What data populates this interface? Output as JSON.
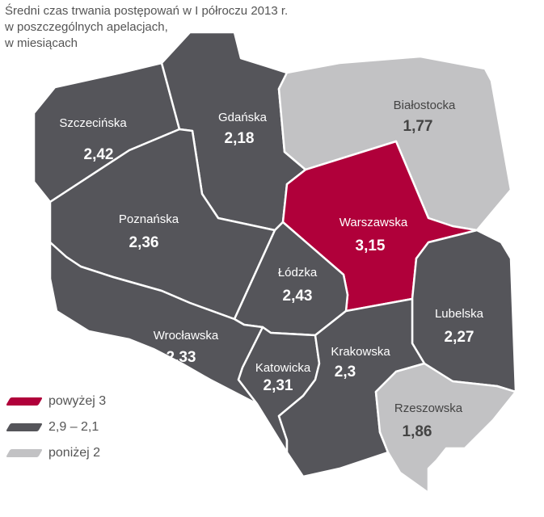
{
  "title": {
    "lines": [
      "Średni czas trwania postępowań w I półroczu 2013 r.",
      "w poszczególnych apelacjach,",
      "w miesiącach"
    ]
  },
  "colors": {
    "high": "#b0003a",
    "mid": "#55555a",
    "low": "#c2c2c4",
    "border": "#ffffff",
    "label_on_dark": "#ffffff",
    "label_on_light": "#444444"
  },
  "legend": {
    "items": [
      {
        "label": "powyżej 3",
        "color": "#b0003a"
      },
      {
        "label": "2,9 – 2,1",
        "color": "#55555a"
      },
      {
        "label": "poniżej 2",
        "color": "#c2c2c4"
      }
    ]
  },
  "regions": [
    {
      "name": "Szczecińska",
      "value": "2,42",
      "category": "mid"
    },
    {
      "name": "Gdańska",
      "value": "2,18",
      "category": "mid"
    },
    {
      "name": "Białostocka",
      "value": "1,77",
      "category": "low"
    },
    {
      "name": "Poznańska",
      "value": "2,36",
      "category": "mid"
    },
    {
      "name": "Warszawska",
      "value": "3,15",
      "category": "high"
    },
    {
      "name": "Łódzka",
      "value": "2,43",
      "category": "mid"
    },
    {
      "name": "Lubelska",
      "value": "2,27",
      "category": "mid"
    },
    {
      "name": "Wrocławska",
      "value": "2,33",
      "category": "mid"
    },
    {
      "name": "Katowicka",
      "value": "2,31",
      "category": "mid"
    },
    {
      "name": "Krakowska",
      "value": "2,3",
      "category": "mid"
    },
    {
      "name": "Rzeszowska",
      "value": "1,86",
      "category": "low"
    }
  ]
}
